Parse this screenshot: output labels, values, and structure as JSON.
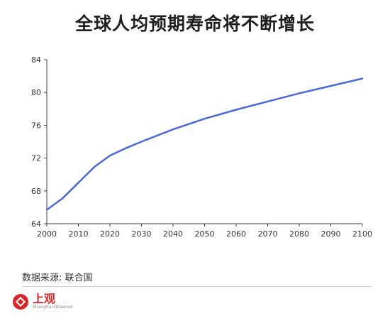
{
  "title": "全球人均预期寿命将不断增长",
  "source": "数据来源: 联合国",
  "logo": {
    "cn": "上观",
    "en": "Shanghai Observer",
    "mark": "shanghai-observer-logo"
  },
  "colors": {
    "line": "#4a69d6",
    "axis": "#444444",
    "logo": "#d7262b"
  },
  "chart_data": {
    "type": "line",
    "title": "全球人均预期寿命将不断增长",
    "xlabel": "",
    "ylabel": "",
    "xlim": [
      2000,
      2100
    ],
    "ylim": [
      64,
      84
    ],
    "x_ticks": [
      2000,
      2010,
      2020,
      2030,
      2040,
      2050,
      2060,
      2070,
      2080,
      2090,
      2100
    ],
    "y_ticks": [
      64,
      68,
      72,
      76,
      80,
      84
    ],
    "grid": false,
    "series": [
      {
        "x": [
          2000,
          2005,
          2010,
          2015,
          2020,
          2025,
          2030,
          2040,
          2050,
          2060,
          2070,
          2080,
          2090,
          2100
        ],
        "values": [
          65.7,
          67.1,
          69.0,
          70.9,
          72.3,
          73.2,
          74.0,
          75.5,
          76.8,
          77.9,
          78.9,
          79.9,
          80.8,
          81.7
        ]
      }
    ]
  }
}
